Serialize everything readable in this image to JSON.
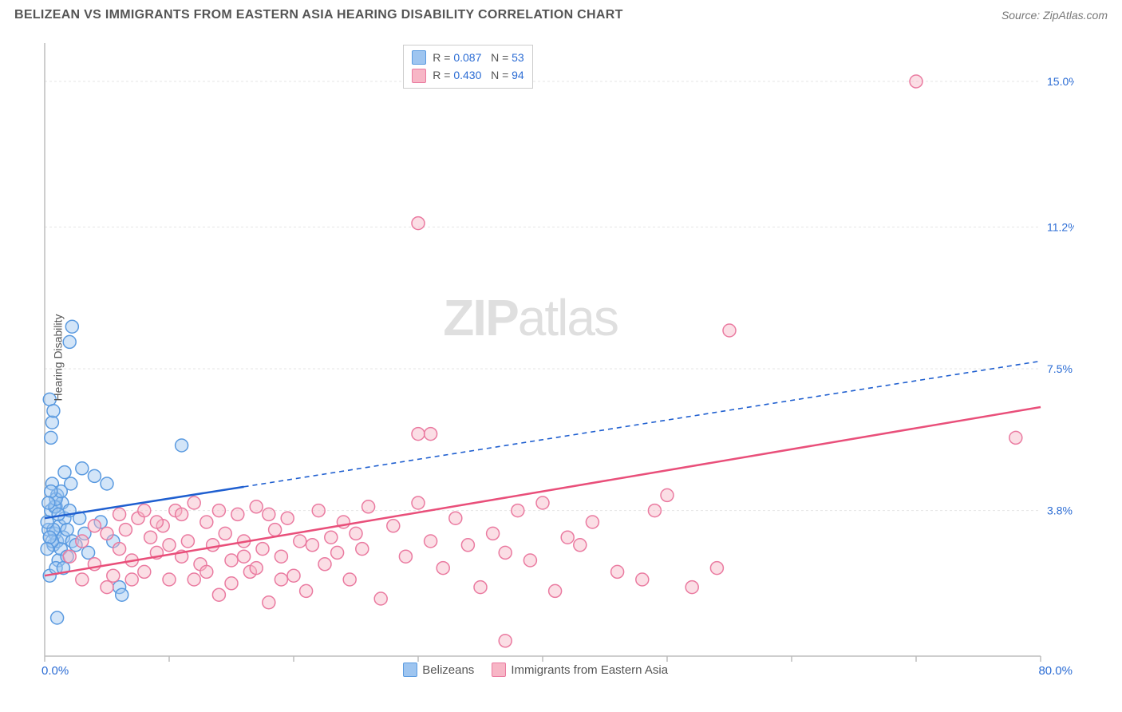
{
  "header": {
    "title": "BELIZEAN VS IMMIGRANTS FROM EASTERN ASIA HEARING DISABILITY CORRELATION CHART",
    "source_prefix": "Source: ",
    "source": "ZipAtlas.com"
  },
  "watermark": {
    "zip": "ZIP",
    "rest": "atlas"
  },
  "chart": {
    "type": "scatter",
    "ylabel": "Hearing Disability",
    "xlim": [
      0,
      80
    ],
    "ylim": [
      0,
      16
    ],
    "x_axis_label_min": "0.0%",
    "x_axis_label_max": "80.0%",
    "x_ticks": [
      0,
      10,
      20,
      30,
      40,
      50,
      60,
      70,
      80
    ],
    "y_gridlines": [
      {
        "v": 3.8,
        "label": "3.8%"
      },
      {
        "v": 7.5,
        "label": "7.5%"
      },
      {
        "v": 11.2,
        "label": "11.2%"
      },
      {
        "v": 15.0,
        "label": "15.0%"
      }
    ],
    "background_color": "#ffffff",
    "grid_color": "#e5e5e5",
    "grid_dash": "3,3",
    "axis_color": "#bdbdbd",
    "tick_color": "#bdbdbd",
    "marker_radius": 8,
    "marker_stroke_width": 1.5,
    "series": [
      {
        "name": "Belizeans",
        "fill": "#9ec5f0",
        "fill_opacity": 0.45,
        "stroke": "#5a9ae0",
        "trend_color": "#1f5fd0",
        "trend_width": 2.5,
        "trend_solid_xmax": 16,
        "trend_y_at_x0": 3.6,
        "trend_y_at_x80": 7.7,
        "R": "0.087",
        "N": "53",
        "points": [
          [
            0.3,
            3.3
          ],
          [
            0.4,
            2.1
          ],
          [
            0.5,
            3.8
          ],
          [
            0.6,
            4.5
          ],
          [
            0.7,
            2.9
          ],
          [
            0.8,
            3.2
          ],
          [
            0.9,
            3.9
          ],
          [
            1.0,
            4.2
          ],
          [
            1.0,
            3.0
          ],
          [
            1.1,
            2.5
          ],
          [
            1.2,
            3.4
          ],
          [
            1.3,
            2.8
          ],
          [
            1.4,
            4.0
          ],
          [
            1.5,
            3.1
          ],
          [
            1.6,
            3.6
          ],
          [
            1.8,
            2.6
          ],
          [
            2.0,
            3.8
          ],
          [
            2.1,
            4.5
          ],
          [
            2.2,
            3.0
          ],
          [
            0.5,
            5.7
          ],
          [
            0.6,
            6.1
          ],
          [
            0.4,
            6.7
          ],
          [
            0.7,
            6.4
          ],
          [
            3.0,
            4.9
          ],
          [
            3.2,
            3.2
          ],
          [
            3.5,
            2.7
          ],
          [
            4.0,
            4.7
          ],
          [
            4.5,
            3.5
          ],
          [
            5.0,
            4.5
          ],
          [
            5.5,
            3.0
          ],
          [
            6.0,
            1.8
          ],
          [
            6.2,
            1.6
          ],
          [
            2.0,
            8.2
          ],
          [
            2.2,
            8.6
          ],
          [
            11.0,
            5.5
          ],
          [
            1.0,
            1.0
          ],
          [
            0.8,
            3.9
          ],
          [
            0.9,
            4.1
          ],
          [
            1.1,
            3.7
          ],
          [
            0.7,
            3.3
          ],
          [
            0.6,
            3.0
          ],
          [
            1.3,
            4.3
          ],
          [
            1.6,
            4.8
          ],
          [
            0.4,
            3.1
          ],
          [
            0.5,
            4.3
          ],
          [
            0.9,
            2.3
          ],
          [
            1.8,
            3.3
          ],
          [
            2.5,
            2.9
          ],
          [
            0.3,
            4.0
          ],
          [
            0.2,
            3.5
          ],
          [
            0.2,
            2.8
          ],
          [
            1.5,
            2.3
          ],
          [
            2.8,
            3.6
          ]
        ]
      },
      {
        "name": "Immigrants from Eastern Asia",
        "fill": "#f7b6c6",
        "fill_opacity": 0.45,
        "stroke": "#ea7aa0",
        "trend_color": "#e94f7a",
        "trend_width": 2.5,
        "trend_solid_xmax": 80,
        "trend_y_at_x0": 2.1,
        "trend_y_at_x80": 6.5,
        "R": "0.430",
        "N": "94",
        "points": [
          [
            2,
            2.6
          ],
          [
            3,
            3.0
          ],
          [
            4,
            2.4
          ],
          [
            5,
            3.2
          ],
          [
            5.5,
            2.1
          ],
          [
            6,
            2.8
          ],
          [
            6.5,
            3.3
          ],
          [
            7,
            2.5
          ],
          [
            7.5,
            3.6
          ],
          [
            8,
            2.2
          ],
          [
            8.5,
            3.1
          ],
          [
            9,
            2.7
          ],
          [
            9.5,
            3.4
          ],
          [
            10,
            2.0
          ],
          [
            10.5,
            3.8
          ],
          [
            11,
            2.6
          ],
          [
            11.5,
            3.0
          ],
          [
            12,
            4.0
          ],
          [
            12.5,
            2.4
          ],
          [
            13,
            3.5
          ],
          [
            13.5,
            2.9
          ],
          [
            14,
            1.6
          ],
          [
            14.5,
            3.2
          ],
          [
            15,
            2.5
          ],
          [
            15.5,
            3.7
          ],
          [
            16,
            3.0
          ],
          [
            16.5,
            2.2
          ],
          [
            17,
            3.9
          ],
          [
            17.5,
            2.8
          ],
          [
            18,
            1.4
          ],
          [
            18.5,
            3.3
          ],
          [
            19,
            2.6
          ],
          [
            19.5,
            3.6
          ],
          [
            20,
            2.1
          ],
          [
            20.5,
            3.0
          ],
          [
            21,
            1.7
          ],
          [
            21.5,
            2.9
          ],
          [
            22,
            3.8
          ],
          [
            22.5,
            2.4
          ],
          [
            23,
            3.1
          ],
          [
            23.5,
            2.7
          ],
          [
            24,
            3.5
          ],
          [
            24.5,
            2.0
          ],
          [
            25,
            3.2
          ],
          [
            25.5,
            2.8
          ],
          [
            26,
            3.9
          ],
          [
            27,
            1.5
          ],
          [
            28,
            3.4
          ],
          [
            29,
            2.6
          ],
          [
            30,
            4.0
          ],
          [
            30,
            5.8
          ],
          [
            31,
            3.0
          ],
          [
            31,
            5.8
          ],
          [
            32,
            2.3
          ],
          [
            33,
            3.6
          ],
          [
            34,
            2.9
          ],
          [
            35,
            1.8
          ],
          [
            36,
            3.2
          ],
          [
            37,
            0.4
          ],
          [
            37,
            2.7
          ],
          [
            38,
            3.8
          ],
          [
            39,
            2.5
          ],
          [
            40,
            4.0
          ],
          [
            41,
            1.7
          ],
          [
            42,
            3.1
          ],
          [
            43,
            2.9
          ],
          [
            44,
            3.5
          ],
          [
            48,
            2.0
          ],
          [
            50,
            4.2
          ],
          [
            52,
            1.8
          ],
          [
            55,
            8.5
          ],
          [
            70,
            15.0
          ],
          [
            78,
            5.7
          ],
          [
            3,
            2.0
          ],
          [
            4,
            3.4
          ],
          [
            5,
            1.8
          ],
          [
            6,
            3.7
          ],
          [
            7,
            2.0
          ],
          [
            8,
            3.8
          ],
          [
            9,
            3.5
          ],
          [
            10,
            2.9
          ],
          [
            11,
            3.7
          ],
          [
            12,
            2.0
          ],
          [
            13,
            2.2
          ],
          [
            14,
            3.8
          ],
          [
            15,
            1.9
          ],
          [
            16,
            2.6
          ],
          [
            17,
            2.3
          ],
          [
            18,
            3.7
          ],
          [
            19,
            2.0
          ],
          [
            30,
            11.3
          ],
          [
            46,
            2.2
          ],
          [
            49,
            3.8
          ],
          [
            54,
            2.3
          ]
        ]
      }
    ],
    "legend_top": {
      "r_label": "R =",
      "n_label": "N ="
    },
    "legend_bottom_items": [
      {
        "series": 0
      },
      {
        "series": 1
      }
    ]
  }
}
